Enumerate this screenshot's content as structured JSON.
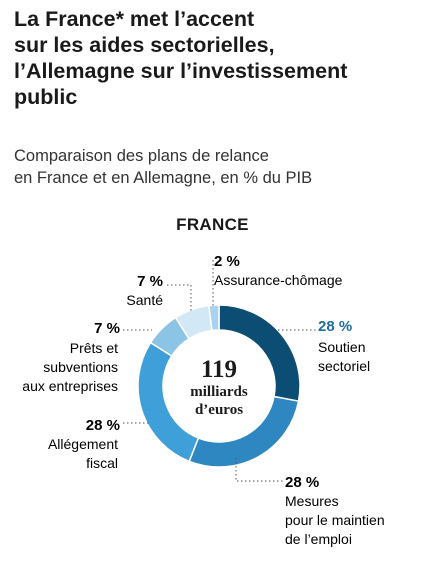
{
  "header": {
    "title_lines": [
      "La France* met l’accent",
      "sur les aides sectorielles,",
      "l’Allemagne sur l’investissement",
      "public"
    ],
    "subtitle_lines": [
      "Comparaison des plans de relance",
      "en France et en Allemagne, en % du PIB"
    ]
  },
  "colors": {
    "navy": "#0c4d73",
    "blue": "#2f87c2",
    "mid_blue": "#3f9fd8",
    "light_blue": "#8cc4e6",
    "pale_blue": "#d3e8f6",
    "very_pale": "#a9d2ee",
    "teal_text": "#1f6f9c",
    "leader": "#555555"
  },
  "chart_data": {
    "type": "pie",
    "title": "FRANCE",
    "center_label": [
      "119",
      "milliards",
      "d’euros"
    ],
    "slices": [
      {
        "key": "soutien",
        "pct_label": "28 %",
        "label_lines": [
          "Soutien",
          "sectoriel"
        ],
        "value": 28,
        "color": "#0c4d73",
        "pct_color": "#1f6f9c"
      },
      {
        "key": "emploi",
        "pct_label": "28 %",
        "label_lines": [
          "Mesures",
          "pour le maintien",
          "de l’emploi"
        ],
        "value": 28,
        "color": "#2f87c2",
        "pct_color": "#1a1a1a"
      },
      {
        "key": "fiscal",
        "pct_label": "28 %",
        "label_lines": [
          "Allégement",
          "fiscal"
        ],
        "value": 28,
        "color": "#3f9fd8",
        "pct_color": "#1a1a1a"
      },
      {
        "key": "prets",
        "pct_label": "7 %",
        "label_lines": [
          "Prêts et",
          "subventions",
          "aux entreprises"
        ],
        "value": 7,
        "color": "#8cc4e6",
        "pct_color": "#1a1a1a"
      },
      {
        "key": "sante",
        "pct_label": "7 %",
        "label_lines": [
          "Santé"
        ],
        "value": 7,
        "color": "#d3e8f6",
        "pct_color": "#1a1a1a"
      },
      {
        "key": "chomage",
        "pct_label": "2 %",
        "label_lines": [
          "Assurance-chômage"
        ],
        "value": 2,
        "color": "#a9d2ee",
        "pct_color": "#1a1a1a"
      }
    ]
  }
}
